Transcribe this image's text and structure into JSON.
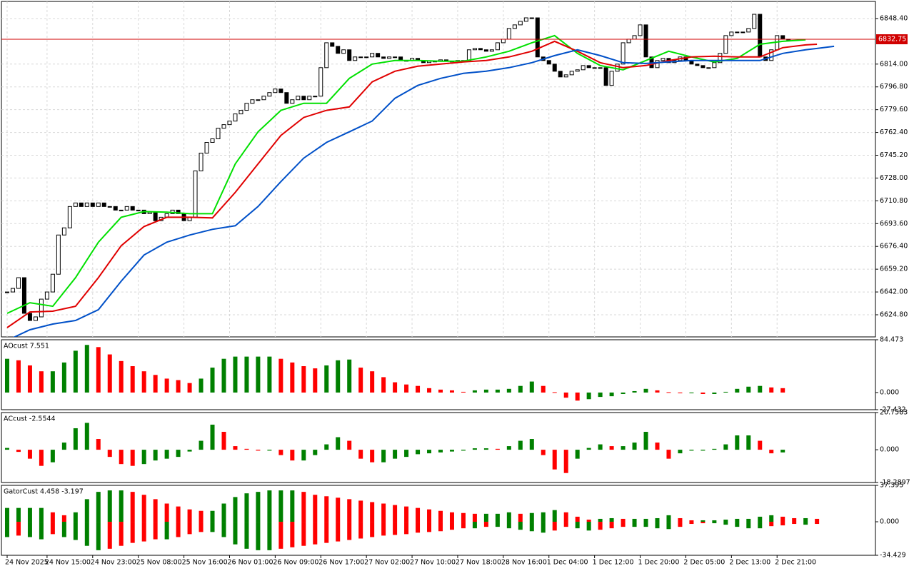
{
  "chart_data": [
    {
      "type": "candlestick",
      "close": [
        6642.0,
        6644.7,
        6652.8,
        6625.9,
        6620.5,
        6623.2,
        6636.6,
        6642.0,
        6655.4,
        6685.0,
        6690.4,
        6706.5,
        6709.2,
        6706.5,
        6709.2,
        6706.5,
        6709.2,
        6706.5,
        6706.5,
        6703.8,
        6703.8,
        6706.5,
        6703.8,
        6703.8,
        6701.1,
        6702.2,
        6695.8,
        6698.4,
        6701.1,
        6703.8,
        6701.1,
        6695.8,
        6698.4,
        6733.4,
        6746.8,
        6754.9,
        6757.6,
        6765.6,
        6768.3,
        6771.0,
        6776.4,
        6779.1,
        6784.4,
        6787.1,
        6787.1,
        6789.8,
        6792.5,
        6795.2,
        6792.5,
        6784.4,
        6787.1,
        6789.8,
        6787.1,
        6789.8,
        6789.8,
        6811.3,
        6830.1,
        6827.4,
        6822.1,
        6824.8,
        6816.7,
        6819.4,
        6819.4,
        6819.4,
        6822.1,
        6819.4,
        6818.3,
        6819.4,
        6819.4,
        6816.7,
        6816.7,
        6818.3,
        6816.7,
        6815.1,
        6816.2,
        6816.2,
        6817.2,
        6816.2,
        6816.2,
        6816.7,
        6816.7,
        6824.8,
        6825.8,
        6824.8,
        6823.7,
        6824.8,
        6830.1,
        6832.8,
        6840.9,
        6843.6,
        6846.3,
        6848.9,
        6848.9,
        6819.4,
        6816.7,
        6814.0,
        6808.6,
        6804.3,
        6805.9,
        6808.6,
        6809.7,
        6812.9,
        6811.3,
        6811.3,
        6811.3,
        6797.9,
        6808.6,
        6814.0,
        6830.1,
        6832.8,
        6835.5,
        6843.6,
        6819.4,
        6811.3,
        6816.7,
        6818.3,
        6815.1,
        6816.7,
        6819.4,
        6816.7,
        6814.0,
        6812.9,
        6811.3,
        6811.3,
        6815.1,
        6822.1,
        6835.5,
        6838.2,
        6838.2,
        6838.2,
        6840.9,
        6851.6,
        6819.4,
        6816.7,
        6824.8,
        6835.5,
        6832.8,
        6832.3
      ],
      "up_color": "#ffffff",
      "down_color": "#000000",
      "series": [
        {
          "color": "#00e000",
          "x": [
            0,
            4,
            8,
            12,
            16,
            20,
            24,
            28,
            32,
            36,
            40,
            44,
            48,
            52,
            56,
            60,
            64,
            68,
            72,
            76,
            80,
            84,
            88,
            92,
            96,
            100,
            104,
            108,
            112,
            116,
            120,
            124,
            128,
            132,
            136,
            140
          ],
          "values": [
            6625.9,
            6633.9,
            6631.2,
            6652.8,
            6679.6,
            6698.4,
            6702.7,
            6702.2,
            6701.1,
            6701.1,
            6738.7,
            6762.9,
            6779.1,
            6784.4,
            6784.4,
            6803.2,
            6814.0,
            6816.7,
            6816.7,
            6816.2,
            6816.2,
            6819.4,
            6823.7,
            6830.1,
            6835.5,
            6822.1,
            6812.9,
            6809.7,
            6816.7,
            6823.7,
            6819.4,
            6815.6,
            6818.3,
            6829.0,
            6831.2,
            6832.3
          ]
        },
        {
          "color": "#e00000",
          "x": [
            0,
            4,
            8,
            12,
            16,
            20,
            24,
            28,
            32,
            36,
            40,
            44,
            48,
            52,
            56,
            60,
            64,
            68,
            72,
            76,
            80,
            84,
            88,
            92,
            96,
            100,
            104,
            108,
            112,
            116,
            120,
            124,
            128,
            132,
            136,
            140,
            142
          ],
          "values": [
            6615.1,
            6626.9,
            6627.5,
            6631.2,
            6652.8,
            6676.9,
            6691.4,
            6698.4,
            6698.4,
            6697.9,
            6717.2,
            6738.7,
            6760.2,
            6773.7,
            6779.1,
            6781.7,
            6800.6,
            6808.6,
            6812.4,
            6814.0,
            6815.6,
            6816.7,
            6819.4,
            6823.7,
            6831.2,
            6823.7,
            6815.1,
            6811.3,
            6812.9,
            6816.7,
            6819.4,
            6819.9,
            6819.4,
            6819.4,
            6826.4,
            6828.5,
            6829.0
          ]
        },
        {
          "color": "#0050c8",
          "x": [
            0,
            4,
            8,
            12,
            16,
            20,
            24,
            28,
            32,
            36,
            40,
            44,
            48,
            52,
            56,
            60,
            64,
            68,
            72,
            76,
            80,
            84,
            88,
            92,
            96,
            100,
            104,
            108,
            112,
            116,
            120,
            124,
            128,
            132,
            136,
            140,
            145
          ],
          "values": [
            6605.4,
            6613.5,
            6617.8,
            6620.5,
            6628.6,
            6650.1,
            6669.9,
            6679.6,
            6685.0,
            6689.3,
            6692.0,
            6706.5,
            6725.3,
            6743.0,
            6754.9,
            6762.9,
            6771.0,
            6788.2,
            6797.9,
            6803.2,
            6807.0,
            6808.6,
            6811.3,
            6815.1,
            6820.4,
            6824.8,
            6820.4,
            6815.1,
            6814.5,
            6815.6,
            6816.7,
            6816.7,
            6816.7,
            6816.7,
            6822.1,
            6824.8,
            6827.4
          ]
        }
      ],
      "current_price": 6832.75,
      "price_line_color": "#d00000",
      "xlim": [
        -1,
        152.25
      ],
      "ylim": [
        6608.1,
        6861.3
      ],
      "yticks": [
        {
          "value": 6848.4,
          "label": "6848.40"
        },
        {
          "value": 6814.0,
          "label": "6814.00"
        },
        {
          "value": 6796.8,
          "label": "6796.80"
        },
        {
          "value": 6779.6,
          "label": "6779.60"
        },
        {
          "value": 6762.4,
          "label": "6762.40"
        },
        {
          "value": 6745.2,
          "label": "6745.20"
        },
        {
          "value": 6728.0,
          "label": "6728.00"
        },
        {
          "value": 6710.8,
          "label": "6710.80"
        },
        {
          "value": 6693.6,
          "label": "6693.60"
        },
        {
          "value": 6676.4,
          "label": "6676.40"
        },
        {
          "value": 6659.2,
          "label": "6659.20"
        },
        {
          "value": 6642.0,
          "label": "6642.00"
        },
        {
          "value": 6624.8,
          "label": "6624.80"
        }
      ],
      "grid": true
    },
    {
      "type": "bar",
      "title": "AOcust 7.551",
      "x": [
        0,
        2,
        4,
        6,
        8,
        10,
        12,
        14,
        16,
        18,
        20,
        22,
        24,
        26,
        28,
        30,
        32,
        34,
        36,
        38,
        40,
        42,
        44,
        46,
        48,
        50,
        52,
        54,
        56,
        58,
        60,
        62,
        64,
        66,
        68,
        70,
        72,
        74,
        76,
        78,
        80,
        82,
        84,
        86,
        88,
        90,
        92,
        94,
        96,
        98,
        100,
        102,
        104,
        106,
        108,
        110,
        112,
        114,
        116,
        118,
        120,
        122,
        124,
        126,
        128,
        130,
        132,
        134,
        136
      ],
      "values": [
        54.0,
        51.6,
        43.4,
        34.0,
        34.0,
        48.1,
        66.9,
        76.2,
        72.7,
        61.0,
        50.4,
        42.2,
        34.0,
        28.2,
        22.3,
        19.9,
        15.2,
        22.3,
        39.9,
        54.0,
        57.5,
        57.5,
        57.5,
        57.5,
        54.0,
        48.1,
        42.2,
        38.7,
        43.4,
        51.6,
        52.8,
        39.9,
        34.0,
        24.6,
        16.4,
        12.9,
        10.6,
        7.0,
        4.7,
        3.5,
        1.2,
        3.5,
        4.7,
        4.7,
        5.9,
        10.6,
        17.6,
        10.6,
        0.6,
        -8.2,
        -12.9,
        -10.6,
        -7.0,
        -5.9,
        -2.3,
        2.3,
        5.9,
        3.5,
        0.6,
        -1.2,
        -1.2,
        -2.3,
        -2.3,
        1.2,
        5.9,
        9.4,
        10.6,
        8.2,
        7.0
      ],
      "up_color": "#008000",
      "down_color": "#ff0000",
      "xlim": [
        -1,
        152.25
      ],
      "ylim": [
        -27.432,
        84.473
      ],
      "yticks": [
        84.473,
        {
          "value": 0,
          "label": "0.000"
        },
        -27.432
      ]
    },
    {
      "type": "bar",
      "title": "ACcust -2.5544",
      "x": [
        0,
        2,
        4,
        6,
        8,
        10,
        12,
        14,
        16,
        18,
        20,
        22,
        24,
        26,
        28,
        30,
        32,
        34,
        36,
        38,
        40,
        42,
        44,
        46,
        48,
        50,
        52,
        54,
        56,
        58,
        60,
        62,
        64,
        66,
        68,
        70,
        72,
        74,
        76,
        78,
        80,
        82,
        84,
        86,
        88,
        90,
        92,
        94,
        96,
        98,
        100,
        102,
        104,
        106,
        108,
        110,
        112,
        114,
        116,
        118,
        120,
        122,
        124,
        126,
        128,
        130,
        132,
        134,
        136
      ],
      "values": [
        1.0,
        -1.2,
        -5,
        -9,
        -7,
        4,
        12,
        15,
        6,
        -4,
        -8,
        -9,
        -8,
        -6,
        -5,
        -4,
        -1,
        5,
        14,
        10,
        2,
        0.5,
        -0.5,
        -0.5,
        -3,
        -6,
        -6,
        -3,
        3,
        7,
        5,
        -5,
        -7,
        -7,
        -5,
        -4,
        -2.5,
        -2,
        -1.5,
        -1,
        -0.5,
        0.8,
        0.8,
        0.5,
        2,
        5,
        6,
        -3,
        -11,
        -13,
        -5,
        1,
        3,
        2,
        2,
        4,
        10,
        4,
        -5,
        -2,
        -0.5,
        -0.5,
        0.5,
        3,
        8,
        8,
        5,
        -2,
        -1.5
      ],
      "up_color": "#008000",
      "down_color": "#ff0000",
      "xlim": [
        -1,
        152.25
      ],
      "ylim": [
        -18.2897,
        20.7583
      ],
      "yticks": [
        20.7583,
        {
          "value": 0,
          "label": "0.000"
        },
        -18.2897
      ]
    },
    {
      "type": "gator",
      "title": "GatorCust 4.458 -3.197",
      "x": [
        0,
        2,
        4,
        6,
        8,
        10,
        12,
        14,
        16,
        18,
        20,
        22,
        24,
        26,
        28,
        30,
        32,
        34,
        36,
        38,
        40,
        42,
        44,
        46,
        48,
        50,
        52,
        54,
        56,
        58,
        60,
        62,
        64,
        66,
        68,
        70,
        72,
        74,
        76,
        78,
        80,
        82,
        84,
        86,
        88,
        90,
        92,
        94,
        96,
        98,
        100,
        102,
        104,
        106,
        108,
        110,
        112,
        114,
        116,
        118,
        120,
        122,
        124,
        126,
        128,
        130,
        132,
        134,
        136,
        138,
        140,
        142
      ],
      "upper": [
        14.2,
        14.2,
        14.2,
        14.2,
        9.7,
        6.7,
        9.7,
        23.2,
        30.7,
        32.2,
        32.2,
        30.7,
        27.7,
        23.2,
        18.7,
        15.7,
        12.7,
        11.2,
        11.2,
        18.7,
        25.4,
        29.2,
        30.7,
        32.2,
        32.2,
        32.2,
        30.7,
        27.7,
        26.2,
        24.7,
        23.2,
        21.7,
        20.2,
        18.7,
        17.2,
        15.7,
        14.2,
        12.7,
        11.2,
        9.7,
        9.0,
        8.2,
        8.2,
        8.2,
        9.7,
        8.2,
        9.0,
        9.7,
        12.0,
        9.7,
        5.2,
        2.2,
        3.0,
        3.7,
        3.0,
        3.0,
        3.0,
        3.7,
        6.7,
        3.7,
        1.5,
        1.5,
        1.5,
        2.2,
        3.0,
        3.0,
        5.2,
        6.7,
        5.2,
        3.7,
        3.7,
        3.0
      ],
      "lower": [
        -15.7,
        -14.2,
        -15.7,
        -18.0,
        -12.7,
        -15.7,
        -18.7,
        -24.7,
        -29.2,
        -27.7,
        -24.7,
        -21.7,
        -20.2,
        -18.0,
        -18.0,
        -15.7,
        -12.7,
        -10.5,
        -10.5,
        -15.7,
        -23.2,
        -27.7,
        -29.2,
        -29.2,
        -27.7,
        -26.2,
        -24.7,
        -23.2,
        -21.7,
        -20.2,
        -18.7,
        -17.2,
        -15.7,
        -14.2,
        -13.5,
        -12.7,
        -11.2,
        -10.5,
        -9.7,
        -8.2,
        -6.7,
        -6.7,
        -5.2,
        -5.2,
        -6.7,
        -8.2,
        -9.7,
        -11.2,
        -9.0,
        -5.2,
        -6.7,
        -9.0,
        -8.2,
        -6.7,
        -5.2,
        -5.2,
        -5.2,
        -6.7,
        -7.5,
        -5.2,
        -2.2,
        -1.5,
        -1.5,
        -3.0,
        -5.2,
        -6.7,
        -6.7,
        -4.5,
        -3.7,
        -2.2,
        -3.0,
        -2.2
      ],
      "up_color": "#008000",
      "down_color": "#ff0000",
      "xlim": [
        -1,
        152.25
      ],
      "ylim": [
        -34.429,
        37.395
      ],
      "yticks": [
        37.395,
        {
          "value": 0,
          "label": "0.000"
        },
        -34.429
      ],
      "xticks": [
        {
          "value": 0,
          "label": "24 Nov 2025"
        },
        {
          "value": 7,
          "label": "24 Nov 15:00"
        },
        {
          "value": 15,
          "label": "24 Nov 23:00"
        },
        {
          "value": 23,
          "label": "25 Nov 08:00"
        },
        {
          "value": 31,
          "label": "25 Nov 16:00"
        },
        {
          "value": 39,
          "label": "26 Nov 01:00"
        },
        {
          "value": 47,
          "label": "26 Nov 09:00"
        },
        {
          "value": 55,
          "label": "26 Nov 17:00"
        },
        {
          "value": 63,
          "label": "27 Nov 02:00"
        },
        {
          "value": 71,
          "label": "27 Nov 10:00"
        },
        {
          "value": 79,
          "label": "27 Nov 18:00"
        },
        {
          "value": 87,
          "label": "28 Nov 16:00"
        },
        {
          "value": 95,
          "label": "1 Dec 04:00"
        },
        {
          "value": 103,
          "label": "1 Dec 12:00"
        },
        {
          "value": 111,
          "label": "1 Dec 20:00"
        },
        {
          "value": 119,
          "label": "2 Dec 05:00"
        },
        {
          "value": 127,
          "label": "2 Dec 13:00"
        },
        {
          "value": 135,
          "label": "2 Dec 21:00"
        }
      ]
    }
  ]
}
